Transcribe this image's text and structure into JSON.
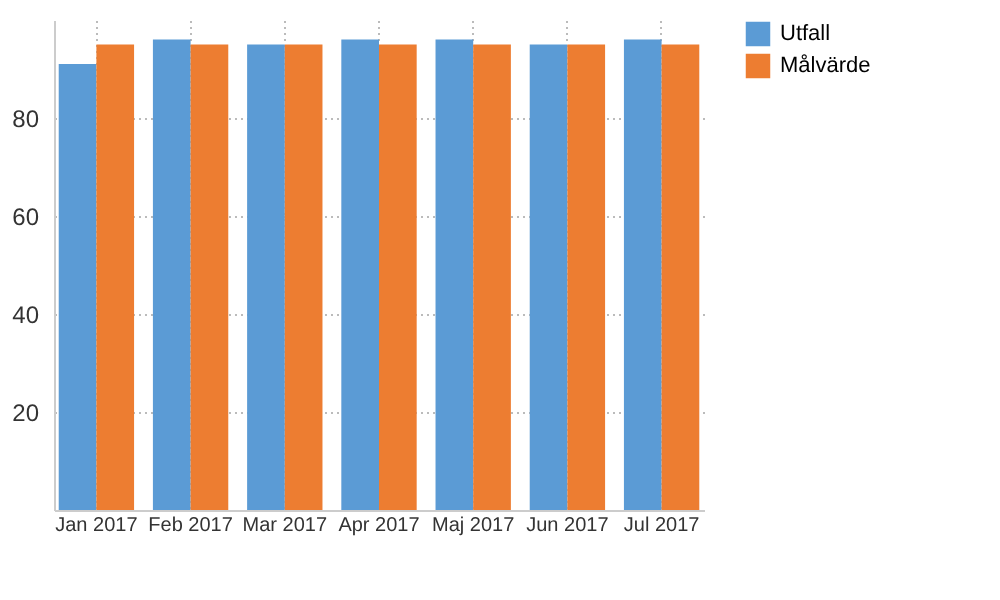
{
  "chart_data": {
    "type": "bar",
    "categories": [
      "Jan 2017",
      "Feb 2017",
      "Mar 2017",
      "Apr 2017",
      "Maj 2017",
      "Jun 2017",
      "Jul 2017"
    ],
    "series": [
      {
        "name": "Utfall",
        "color": "#5b9bd5",
        "values": [
          91,
          96,
          95,
          96,
          96,
          95,
          96
        ]
      },
      {
        "name": "Målvärde",
        "color": "#ed7d31",
        "values": [
          95,
          95,
          95,
          95,
          95,
          95,
          95
        ]
      }
    ],
    "ylim": [
      0,
      100
    ],
    "yticks": [
      20,
      40,
      60,
      80
    ],
    "grid": true,
    "legend": "top right"
  }
}
